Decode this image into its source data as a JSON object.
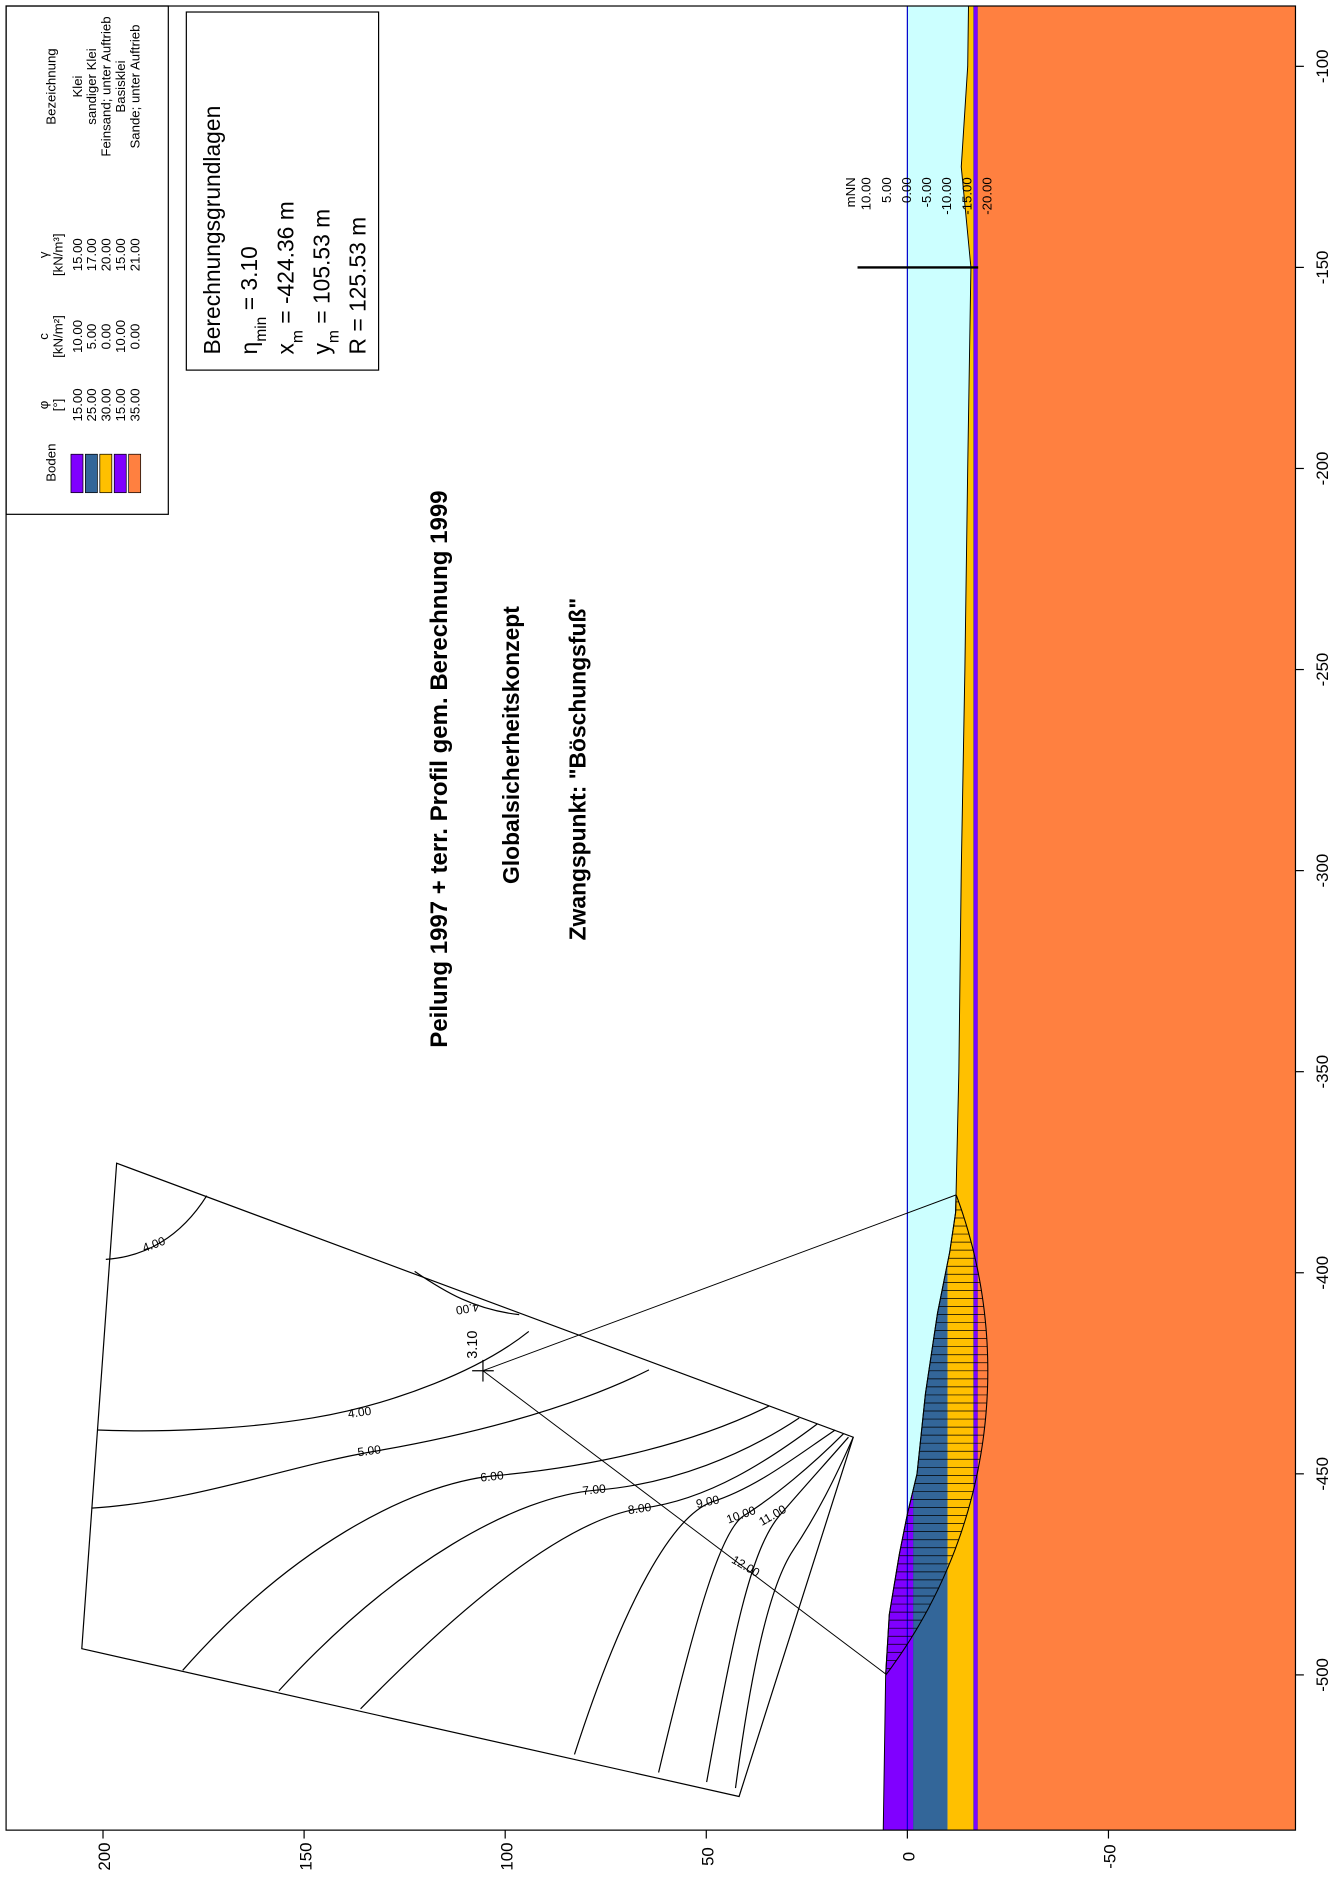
{
  "chart_data": {
    "type": "section",
    "title": "Peilung 1997 + terr. Profil gem. Berechnung 1999",
    "subtitle": "Globalsicherheitskonzept",
    "note": "Zwangspunkt: \"Böschungsfuß\"",
    "xlim": [
      -538.6,
      -85
    ],
    "xticks": [
      -100,
      -150,
      -200,
      -250,
      -300,
      -350,
      -400,
      -450,
      -500
    ],
    "ylim": [
      -96.5,
      224.1
    ],
    "yticks": [
      200,
      150,
      100,
      50,
      0,
      -50
    ],
    "water_level": 0,
    "water_color": "#ccffff",
    "water_line_color": "#0000cc",
    "surface": {
      "x": [
        -538.6,
        -500,
        -485,
        -470,
        -460,
        -450,
        -430,
        -410,
        -395,
        -385,
        -350,
        -300,
        -250,
        -200,
        -150,
        -125,
        -100,
        -85
      ],
      "y": [
        6,
        5.4,
        4.5,
        2,
        0,
        -2.4,
        -4.5,
        -7.5,
        -10.5,
        -12,
        -12.8,
        -13.4,
        -14.3,
        -15,
        -15.8,
        -13.4,
        -15,
        -15.2
      ]
    },
    "legend_headers": {
      "soil": "Boden",
      "phi": "φ",
      "phi_unit": "[°]",
      "c": "c",
      "c_unit": "[kN/m²]",
      "gamma": "γ",
      "gamma_unit": "[kN/m³]",
      "name": "Bezeichnung"
    },
    "layers": [
      {
        "name": "Klei",
        "color": "#8000ff",
        "phi": "15.00",
        "c": "10.00",
        "gamma": "15.00",
        "top": 6,
        "bottom": -1.5
      },
      {
        "name": "sandiger Klei",
        "color": "#336699",
        "phi": "25.00",
        "c": "5.00",
        "gamma": "17.00",
        "top": -1.5,
        "bottom": -10
      },
      {
        "name": "Feinsand; unter Auftrieb",
        "color": "#ffc000",
        "phi": "30.00",
        "c": "0.00",
        "gamma": "20.00",
        "top": -10,
        "bottom": -16.5
      },
      {
        "name": "Basisklei",
        "color": "#8000ff",
        "phi": "15.00",
        "c": "10.00",
        "gamma": "15.00",
        "top": -16.5,
        "bottom": -17.5
      },
      {
        "name": "Sande; unter Auftrieb",
        "color": "#ff8040",
        "phi": "35.00",
        "c": "0.00",
        "gamma": "21.00",
        "top": -17.5,
        "bottom": -96.5
      }
    ],
    "results": {
      "title": "Berechnungsgrundlagen",
      "lines": [
        {
          "symbol": "η",
          "sub": "min",
          "text": " = 3.10"
        },
        {
          "symbol": "x",
          "sub": "m",
          "text": " = -424.36 m"
        },
        {
          "symbol": "y",
          "sub": "m",
          "text": " = 105.53 m"
        },
        {
          "symbol": "R",
          "text": " = 125.53 m"
        }
      ]
    },
    "circle": {
      "xm": -424.36,
      "ym": 105.53,
      "R": 125.53,
      "eta": 3.1,
      "eta_label": "3.10"
    },
    "ruler": {
      "x": -150,
      "unit": "mNN",
      "ticks": [
        {
          "value": 10,
          "label": "10.00"
        },
        {
          "value": 5,
          "label": "5.00"
        },
        {
          "value": 0,
          "label": "0.00"
        },
        {
          "value": -5,
          "label": "-5.00"
        },
        {
          "value": -10,
          "label": "-10.00"
        },
        {
          "value": -15,
          "label": "-15.00"
        },
        {
          "value": -20,
          "label": "-20.00"
        }
      ]
    },
    "contours": [
      {
        "value": 4,
        "label": "4.00"
      },
      {
        "value": 4,
        "label": "4.00"
      },
      {
        "value": 4,
        "label": "4.00"
      },
      {
        "value": 5,
        "label": "5.00"
      },
      {
        "value": 6,
        "label": "6.00"
      },
      {
        "value": 7,
        "label": "7.00"
      },
      {
        "value": 8,
        "label": "8.00"
      },
      {
        "value": 9,
        "label": "9.00"
      },
      {
        "value": 10,
        "label": "10.00"
      },
      {
        "value": 11,
        "label": "11.00"
      },
      {
        "value": 12,
        "label": "12.00"
      }
    ]
  }
}
